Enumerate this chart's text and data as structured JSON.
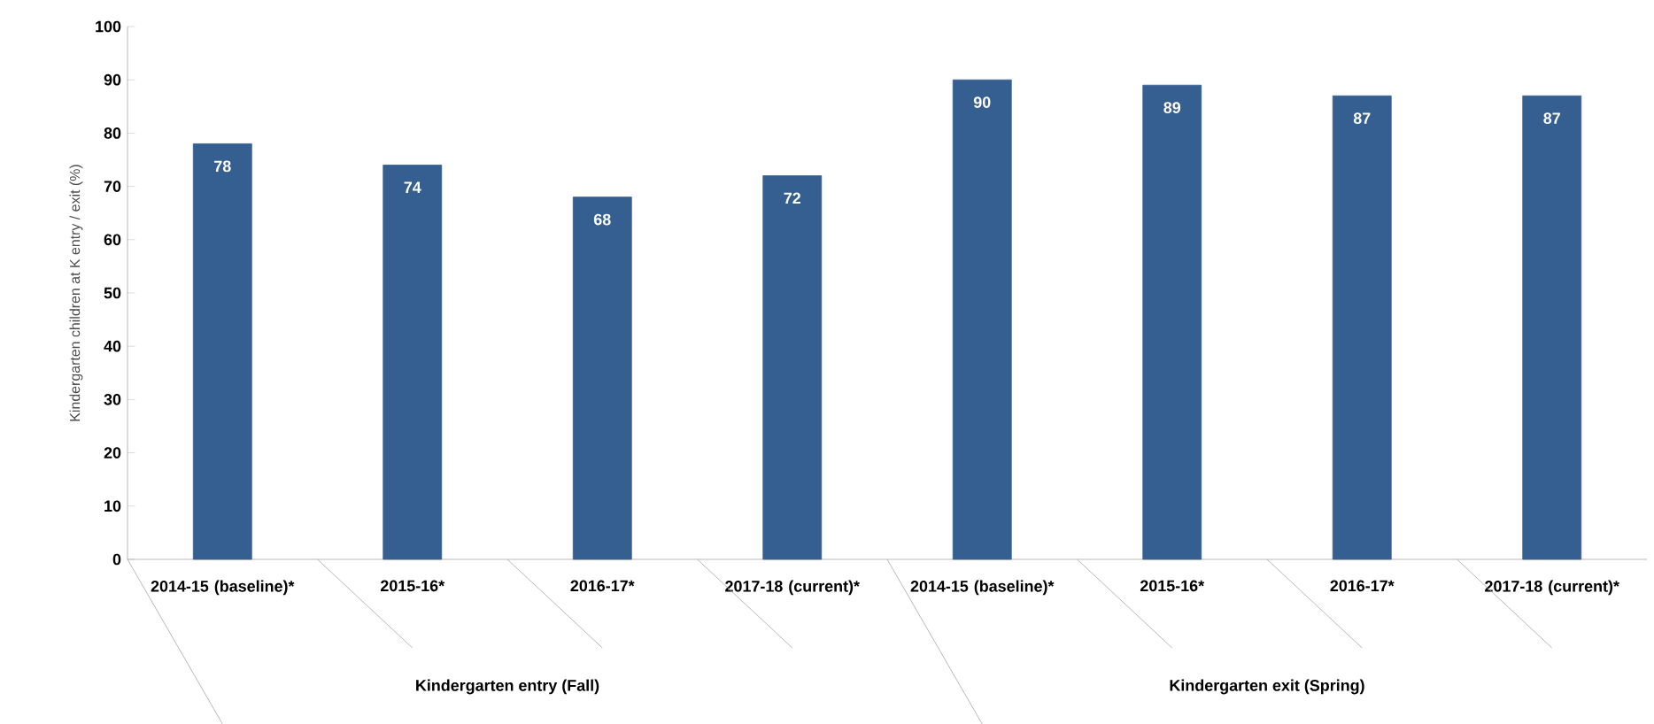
{
  "chart_data": {
    "type": "bar",
    "ylabel": "Kindergarten children at K entry / exit (%)",
    "categories": [
      "2014-15 (baseline)*",
      "2015-16*",
      "2016-17*",
      "2017-18 (current)*",
      "2014-15 (baseline)*",
      "2015-16*",
      "2016-17*",
      "2017-18 (current)*"
    ],
    "values": [
      78,
      74,
      68,
      72,
      90,
      89,
      87,
      87
    ],
    "color": "#365f91",
    "data_labels": true,
    "ylim": [
      0,
      100
    ],
    "yticks": [
      0,
      10,
      20,
      30,
      40,
      50,
      60,
      70,
      80,
      90,
      100
    ],
    "annotations": [
      "Kindergarten entry (Fall)",
      "Kindergarten exit (Spring)"
    ]
  }
}
